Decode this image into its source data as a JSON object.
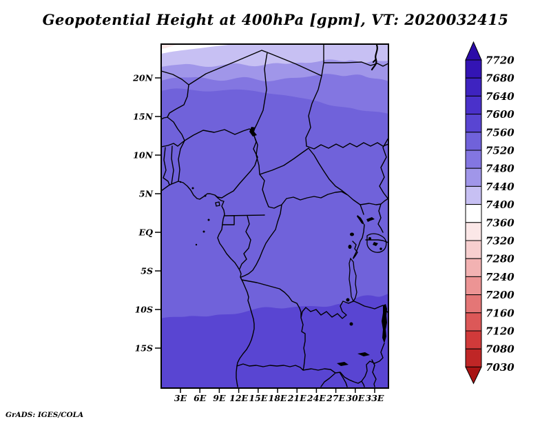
{
  "title": "Geopotential Height at 400hPa [gpm], VT: 2020032415",
  "credit": "GrADS: IGES/COLA",
  "axes": {
    "lat_labels": [
      "20N",
      "15N",
      "10N",
      "5N",
      "EQ",
      "5S",
      "10S",
      "15S"
    ],
    "lon_labels": [
      "3E",
      "6E",
      "9E",
      "12E",
      "15E",
      "18E",
      "21E",
      "24E",
      "27E",
      "30E",
      "33E"
    ]
  },
  "colorbar": {
    "labels_top_to_bottom": [
      "7720",
      "7680",
      "7640",
      "7600",
      "7560",
      "7520",
      "7480",
      "7440",
      "7400",
      "7360",
      "7320",
      "7280",
      "7240",
      "7200",
      "7160",
      "7120",
      "7080",
      "7030"
    ],
    "segments_top_to_bottom": [
      "#3314b4",
      "#3e23c0",
      "#4a31ca",
      "#5945d2",
      "#7062da",
      "#8376e1",
      "#a096e9",
      "#c7c0f3",
      "#ffffff",
      "#fbe7e7",
      "#f7cfcf",
      "#f2b2b2",
      "#ec9494",
      "#e47676",
      "#dc5858",
      "#d03a3a",
      "#bf2626"
    ],
    "arrow_high_color": "#2b0ba8",
    "arrow_low_color": "#a81414"
  },
  "map_fills": {
    "main": "#7062da",
    "band_7480_7520": "#8376e1",
    "band_7440_7480": "#a096e9",
    "band_7400_7440": "#c7c0f3",
    "band_7360_7400": "#ffffff",
    "band_7320_7360": "#fbe7e7",
    "south_7560_7600": "#5945d2",
    "border_color": "#000000"
  },
  "chart_data": {
    "type": "heatmap",
    "title": "Geopotential Height at 400hPa [gpm], VT: 2020032415",
    "variable": "Geopotential Height",
    "level": "400hPa",
    "units": "gpm",
    "valid_time": "2020032415",
    "xlabel": "",
    "ylabel": "",
    "x_tick_labels": [
      "3E",
      "6E",
      "9E",
      "12E",
      "15E",
      "18E",
      "21E",
      "24E",
      "27E",
      "30E",
      "33E"
    ],
    "y_tick_labels": [
      "20N",
      "15N",
      "10N",
      "5N",
      "EQ",
      "5S",
      "10S",
      "15S"
    ],
    "lon_range_deg_east": [
      0,
      35
    ],
    "lat_range_deg_north": [
      -20,
      24
    ],
    "grid": false,
    "legend_position": "right-colorbar-with-arrows",
    "colorbar_levels_low_to_high": [
      7030,
      7080,
      7120,
      7160,
      7200,
      7240,
      7280,
      7320,
      7360,
      7400,
      7440,
      7480,
      7520,
      7560,
      7600,
      7640,
      7680,
      7720
    ],
    "colorbar_colors_low_to_high": [
      "#bf2626",
      "#d03a3a",
      "#dc5858",
      "#e47676",
      "#ec9494",
      "#f2b2b2",
      "#f7cfcf",
      "#fbe7e7",
      "#ffffff",
      "#c7c0f3",
      "#a096e9",
      "#8376e1",
      "#7062da",
      "#5945d2",
      "#4a31ca",
      "#3e23c0",
      "#3314b4"
    ],
    "field_bands": [
      {
        "value_range": "7320-7360",
        "region": "tiny pale-pink patch in extreme NW corner (~24N, 0-2E)"
      },
      {
        "value_range": "7360-7400",
        "region": "narrow white sliver along north edge west of ~11E"
      },
      {
        "value_range": "7400-7440",
        "region": "pale lavender band along top edge (~23-24N), also NE corner"
      },
      {
        "value_range": "7440-7480",
        "region": "light purple band ~21.5-23N"
      },
      {
        "value_range": "7480-7520",
        "region": "band ~19.5-21.5N, dipping to ~18N in the east"
      },
      {
        "value_range": "7520-7560",
        "region": "dominant fill over most of domain, ~9S to 19N"
      },
      {
        "value_range": "7560-7600",
        "region": "darker purple across the south, south of wavy line ~8S(east) to 11S(west)"
      }
    ]
  }
}
